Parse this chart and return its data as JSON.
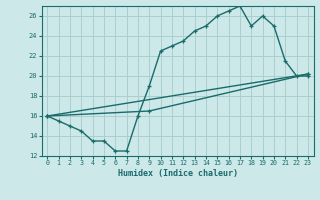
{
  "xlabel": "Humidex (Indice chaleur)",
  "bg_color": "#cce8e8",
  "grid_color": "#aacfcf",
  "line_color": "#1a6b6b",
  "xlim": [
    -0.5,
    23.5
  ],
  "ylim": [
    12,
    27
  ],
  "xticks": [
    0,
    1,
    2,
    3,
    4,
    5,
    6,
    7,
    8,
    9,
    10,
    11,
    12,
    13,
    14,
    15,
    16,
    17,
    18,
    19,
    20,
    21,
    22,
    23
  ],
  "yticks": [
    12,
    14,
    16,
    18,
    20,
    22,
    24,
    26
  ],
  "line1_x": [
    0,
    1,
    2,
    3,
    4,
    5,
    6,
    7,
    8,
    9,
    10,
    11,
    12,
    13,
    14,
    15,
    16,
    17,
    18,
    19,
    20,
    21,
    22,
    23
  ],
  "line1_y": [
    16,
    15.5,
    15,
    14.5,
    13.5,
    13.5,
    12.5,
    12.5,
    16,
    19,
    22.5,
    23,
    23.5,
    24.5,
    25,
    26,
    26.5,
    27,
    25,
    26,
    25,
    21.5,
    20,
    20
  ],
  "line2_x": [
    0,
    23
  ],
  "line2_y": [
    16,
    20.2
  ],
  "line3_x": [
    0,
    9,
    23
  ],
  "line3_y": [
    16,
    16.5,
    20.2
  ]
}
